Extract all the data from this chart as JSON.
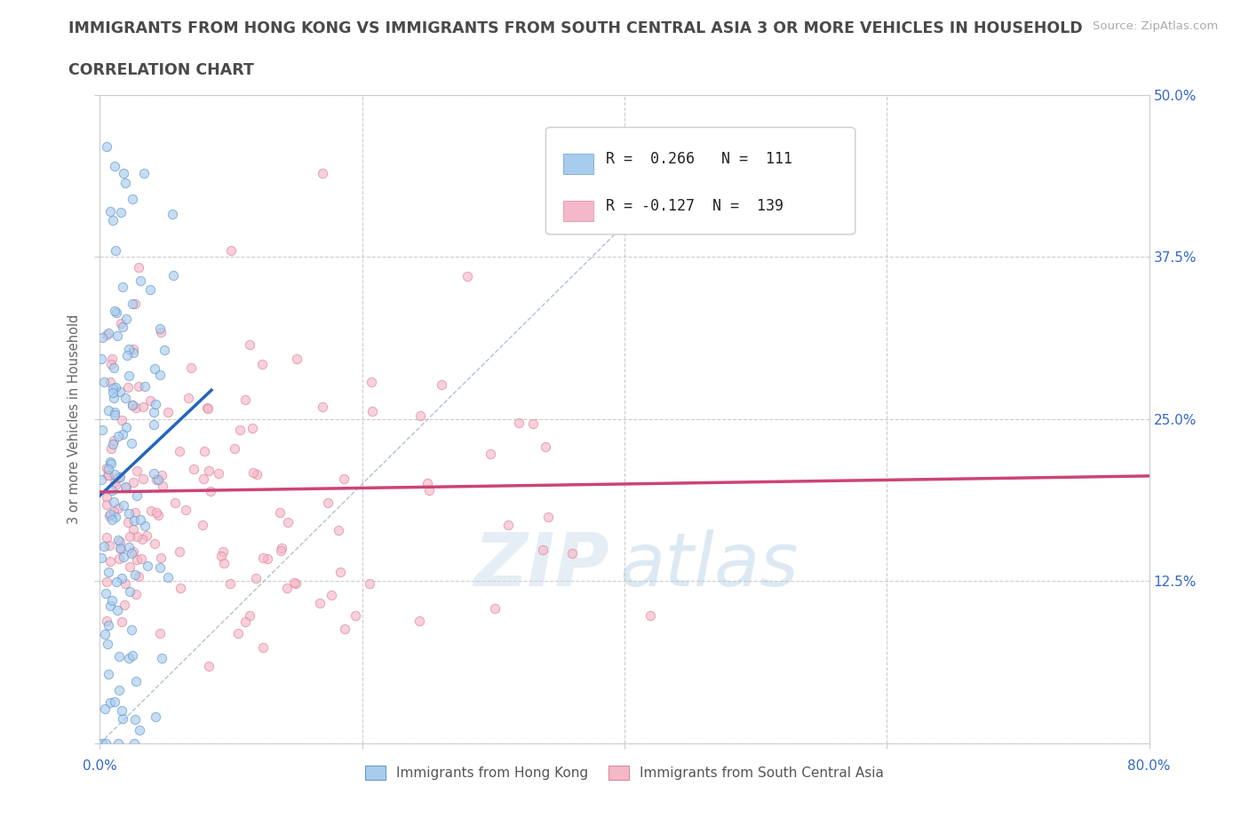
{
  "title_line1": "IMMIGRANTS FROM HONG KONG VS IMMIGRANTS FROM SOUTH CENTRAL ASIA 3 OR MORE VEHICLES IN HOUSEHOLD",
  "title_line2": "CORRELATION CHART",
  "title_color": "#4a4a4a",
  "title_fontsize": 12.5,
  "subtitle_fontsize": 12.5,
  "source_text": "Source: ZipAtlas.com",
  "source_color": "#aaaaaa",
  "watermark_zip": "ZIP",
  "watermark_atlas": "atlas",
  "ylabel": "3 or more Vehicles in Household",
  "ylabel_color": "#666666",
  "xlim": [
    0.0,
    0.8
  ],
  "ylim": [
    0.0,
    0.5
  ],
  "xticks": [
    0.0,
    0.2,
    0.4,
    0.6,
    0.8
  ],
  "yticks": [
    0.0,
    0.125,
    0.25,
    0.375,
    0.5
  ],
  "yticklabels_right": [
    "",
    "12.5%",
    "25.0%",
    "37.5%",
    "50.0%"
  ],
  "grid_color": "#cccccc",
  "background_color": "#ffffff",
  "hk_color": "#a8ccee",
  "hk_edge_color": "#6699cc",
  "sca_color": "#f5b8c8",
  "sca_edge_color": "#dd8899",
  "hk_R": 0.266,
  "hk_N": 111,
  "sca_R": -0.127,
  "sca_N": 139,
  "hk_line_color": "#2266bb",
  "sca_line_color": "#cc4477",
  "diag_line_color": "#aabbcc",
  "legend_label_hk": "Immigrants from Hong Kong",
  "legend_label_sca": "Immigrants from South Central Asia",
  "marker_size": 55,
  "marker_alpha": 0.65
}
